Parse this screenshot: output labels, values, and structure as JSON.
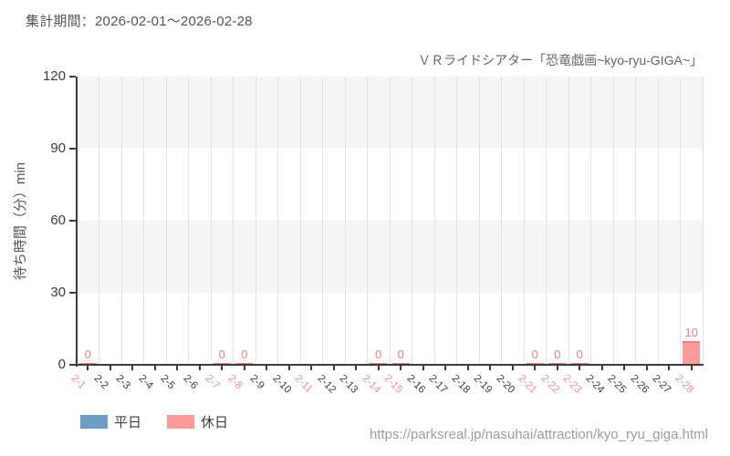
{
  "header": {
    "title": "集計期間：2026-02-01～2026-02-28"
  },
  "chart": {
    "subtitle": "ＶＲライドシアター「恐竜戯画~kyo-ryu-GIGA~」",
    "y_axis_label": "待ち時間（分）min"
  },
  "chart_data": {
    "type": "bar",
    "title": "ＶＲライドシアター「恐竜戯画~kyo-ryu-GIGA~」",
    "period": "2026-02-01～2026-02-28",
    "xlabel": "",
    "ylabel": "待ち時間（分）min",
    "ylim": [
      0,
      120
    ],
    "y_ticks": [
      0,
      30,
      60,
      90,
      120
    ],
    "grid": true,
    "legend_position": "bottom-left",
    "categories": [
      "2-1",
      "2-2",
      "2-3",
      "2-4",
      "2-5",
      "2-6",
      "2-7",
      "2-8",
      "2-9",
      "2-10",
      "2-11",
      "2-12",
      "2-13",
      "2-14",
      "2-15",
      "2-16",
      "2-17",
      "2-18",
      "2-19",
      "2-20",
      "2-21",
      "2-22",
      "2-23",
      "2-24",
      "2-25",
      "2-26",
      "2-27",
      "2-28"
    ],
    "holiday_categories": [
      "2-1",
      "2-7",
      "2-8",
      "2-11",
      "2-14",
      "2-15",
      "2-21",
      "2-22",
      "2-23",
      "2-28"
    ],
    "series": [
      {
        "name": "平日",
        "color": "#6d9dc5",
        "edge_color": "#5b8db8",
        "values": [
          null,
          null,
          null,
          null,
          null,
          null,
          null,
          null,
          null,
          null,
          null,
          null,
          null,
          null,
          null,
          null,
          null,
          null,
          null,
          null,
          null,
          null,
          null,
          null,
          null,
          null,
          null,
          null
        ]
      },
      {
        "name": "休日",
        "color": "#fb9b9b",
        "edge_color": "#f87e7e",
        "values": [
          0,
          null,
          null,
          null,
          null,
          null,
          0,
          0,
          null,
          null,
          null,
          null,
          null,
          0,
          0,
          null,
          null,
          null,
          null,
          null,
          0,
          0,
          0,
          null,
          null,
          null,
          null,
          10
        ]
      }
    ]
  },
  "legend": {
    "items": [
      {
        "label": "平日",
        "color": "#6d9dc5"
      },
      {
        "label": "休日",
        "color": "#fb9b9b"
      }
    ]
  },
  "footer": {
    "url": "https://parksreal.jp/nasuhai/attraction/kyo_ryu_giga.html"
  },
  "colors": {
    "axis": "#3d3d3d",
    "band_gray": "#f5f5f5",
    "gridline": "#e4e4e4",
    "weekday_tick_label": "#3f3f3f",
    "holiday_tick_label": "#f59191",
    "value_label": "#f98080"
  }
}
